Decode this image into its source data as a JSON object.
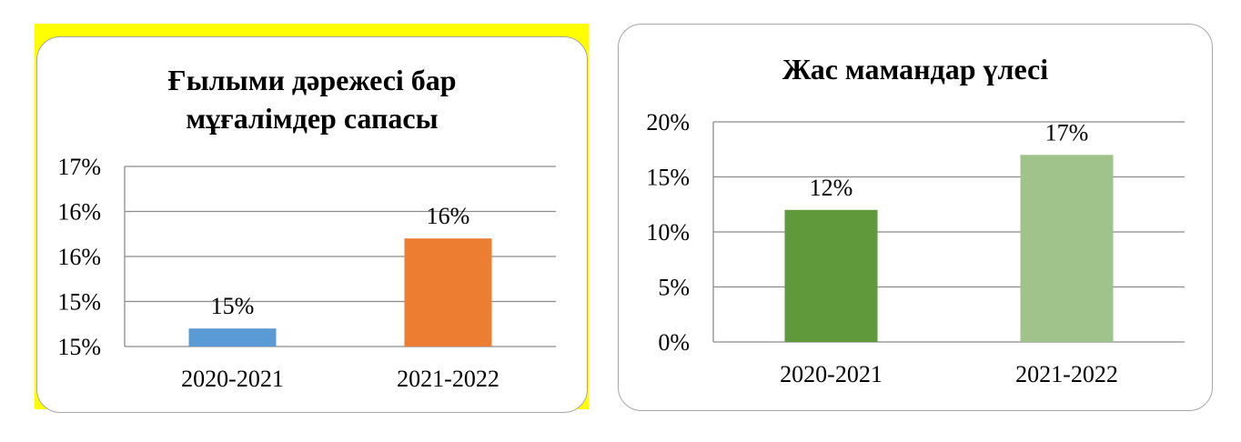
{
  "chart_data": [
    {
      "type": "bar",
      "title": [
        "Ғылыми дәрежесі бар",
        "мұғалімдер сапасы"
      ],
      "categories": [
        "2020-2021",
        "2021-2022"
      ],
      "values": [
        15,
        16
      ],
      "data_labels": [
        "15%",
        "16%"
      ],
      "bar_colors": [
        "#5b9bd5",
        "#ed7d31"
      ],
      "y_tick_labels": [
        "17%",
        "16%",
        "16%",
        "15%",
        "15%"
      ],
      "ylim": [
        14.8,
        16.8
      ],
      "grid": true,
      "legend": "none"
    },
    {
      "type": "bar",
      "title": [
        "Жас мамандар үлесі"
      ],
      "categories": [
        "2020-2021",
        "2021-2022"
      ],
      "values": [
        12,
        17
      ],
      "data_labels": [
        "12%",
        "17%"
      ],
      "bar_colors": [
        "#5f993b",
        "#9fc38a"
      ],
      "y_tick_labels": [
        "20%",
        "15%",
        "10%",
        "5%",
        "0%"
      ],
      "ylim": [
        0,
        20
      ],
      "grid": true,
      "legend": "none"
    }
  ]
}
